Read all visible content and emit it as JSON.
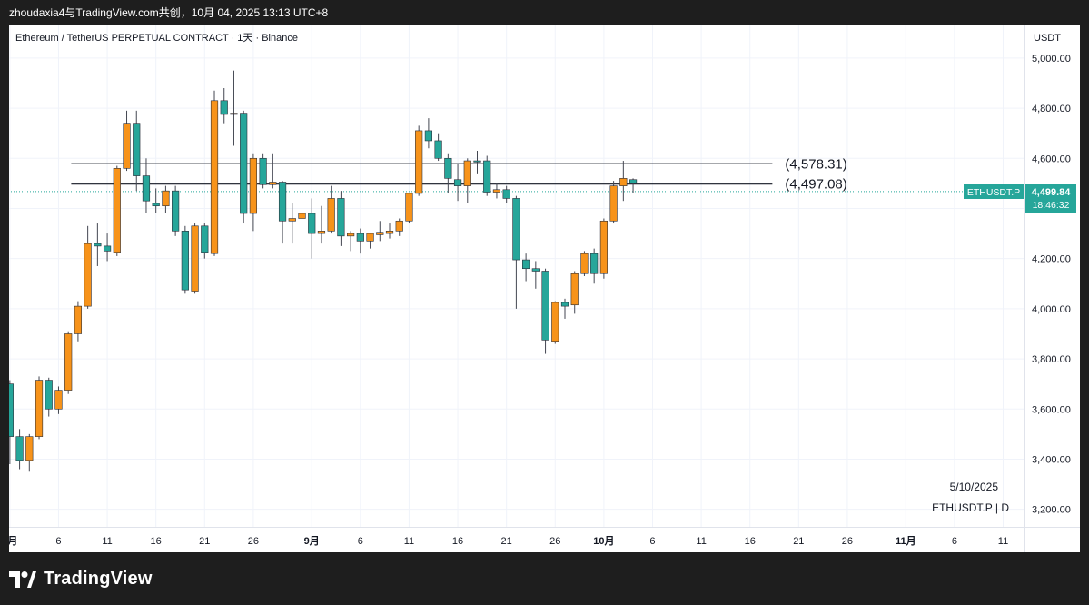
{
  "header": {
    "caption": "zhoudaxia4与TradingView.com共创，10月 04, 2025 13:13 UTC+8"
  },
  "footer": {
    "brand": "TradingView"
  },
  "colors": {
    "up": "#f7931a",
    "down": "#26a69a",
    "wick": "#434651",
    "grid": "#f0f3fa",
    "price_badge": "#26a69a"
  },
  "chart_data": {
    "type": "candlestick",
    "title": "Ethereum / TetherUS PERPETUAL CONTRACT · 1天 · Binance",
    "currency_label": "USDT",
    "y_ticks": [
      "5,000.00",
      "4,800.00",
      "4,600.00",
      "4,400.00",
      "4,200.00",
      "4,000.00",
      "3,800.00",
      "3,600.00",
      "3,400.00",
      "3,200.00"
    ],
    "y_tick_values": [
      5000,
      4800,
      4600,
      4400,
      4200,
      4000,
      3800,
      3600,
      3400,
      3200
    ],
    "x_ticks": [
      "8月",
      "6",
      "11",
      "16",
      "21",
      "26",
      "9月",
      "6",
      "11",
      "16",
      "21",
      "26",
      "10月",
      "6",
      "11",
      "16",
      "21",
      "26",
      "11月",
      "6",
      "11"
    ],
    "x_tick_days": [
      0,
      5,
      10,
      15,
      20,
      25,
      31,
      36,
      41,
      46,
      51,
      56,
      61,
      66,
      71,
      76,
      81,
      86,
      92,
      97,
      102
    ],
    "ylim": [
      3130,
      5130
    ],
    "xlim": [
      -0.08,
      104.1
    ],
    "last_price": {
      "value": "4,499.84",
      "symbol": "ETHUSDT.P",
      "countdown": "18:46:32"
    },
    "horizontal_lines": [
      {
        "value": 4578.31,
        "label": "(4,578.31)"
      },
      {
        "value": 4497.08,
        "label": "(4,497.08)"
      }
    ],
    "watermark": {
      "date": "5/10/2025",
      "symbol": "ETHUSDT.P | D"
    },
    "candles": [
      {
        "d": -1,
        "o": 3800,
        "h": 3820,
        "l": 3630,
        "c": 3690
      },
      {
        "d": 0,
        "o": 3700,
        "h": 3715,
        "l": 3380,
        "c": 3490
      },
      {
        "d": 1,
        "o": 3490,
        "h": 3520,
        "l": 3360,
        "c": 3395
      },
      {
        "d": 2,
        "o": 3395,
        "h": 3500,
        "l": 3350,
        "c": 3490
      },
      {
        "d": 3,
        "o": 3490,
        "h": 3730,
        "l": 3480,
        "c": 3715
      },
      {
        "d": 4,
        "o": 3715,
        "h": 3725,
        "l": 3570,
        "c": 3600
      },
      {
        "d": 5,
        "o": 3600,
        "h": 3690,
        "l": 3580,
        "c": 3675
      },
      {
        "d": 6,
        "o": 3675,
        "h": 3910,
        "l": 3660,
        "c": 3900
      },
      {
        "d": 7,
        "o": 3900,
        "h": 4030,
        "l": 3870,
        "c": 4010
      },
      {
        "d": 8,
        "o": 4010,
        "h": 4330,
        "l": 4000,
        "c": 4260
      },
      {
        "d": 9,
        "o": 4260,
        "h": 4340,
        "l": 4170,
        "c": 4250
      },
      {
        "d": 10,
        "o": 4250,
        "h": 4300,
        "l": 4190,
        "c": 4230
      },
      {
        "d": 11,
        "o": 4225,
        "h": 4570,
        "l": 4210,
        "c": 4560
      },
      {
        "d": 12,
        "o": 4560,
        "h": 4790,
        "l": 4550,
        "c": 4740
      },
      {
        "d": 13,
        "o": 4740,
        "h": 4790,
        "l": 4470,
        "c": 4530
      },
      {
        "d": 14,
        "o": 4530,
        "h": 4600,
        "l": 4380,
        "c": 4430
      },
      {
        "d": 15,
        "o": 4420,
        "h": 4480,
        "l": 4380,
        "c": 4410
      },
      {
        "d": 16,
        "o": 4410,
        "h": 4490,
        "l": 4380,
        "c": 4470
      },
      {
        "d": 17,
        "o": 4470,
        "h": 4490,
        "l": 4290,
        "c": 4310
      },
      {
        "d": 18,
        "o": 4310,
        "h": 4330,
        "l": 4060,
        "c": 4075
      },
      {
        "d": 19,
        "o": 4070,
        "h": 4340,
        "l": 4060,
        "c": 4330
      },
      {
        "d": 20,
        "o": 4330,
        "h": 4340,
        "l": 4200,
        "c": 4225
      },
      {
        "d": 21,
        "o": 4220,
        "h": 4870,
        "l": 4210,
        "c": 4830
      },
      {
        "d": 22,
        "o": 4830,
        "h": 4880,
        "l": 4740,
        "c": 4775
      },
      {
        "d": 23,
        "o": 4775,
        "h": 4950,
        "l": 4650,
        "c": 4780
      },
      {
        "d": 24,
        "o": 4780,
        "h": 4790,
        "l": 4340,
        "c": 4380
      },
      {
        "d": 25,
        "o": 4380,
        "h": 4620,
        "l": 4310,
        "c": 4600
      },
      {
        "d": 26,
        "o": 4600,
        "h": 4620,
        "l": 4480,
        "c": 4495
      },
      {
        "d": 27,
        "o": 4495,
        "h": 4620,
        "l": 4480,
        "c": 4505
      },
      {
        "d": 28,
        "o": 4505,
        "h": 4510,
        "l": 4260,
        "c": 4350
      },
      {
        "d": 29,
        "o": 4350,
        "h": 4420,
        "l": 4260,
        "c": 4360
      },
      {
        "d": 30,
        "o": 4360,
        "h": 4400,
        "l": 4300,
        "c": 4380
      },
      {
        "d": 31,
        "o": 4380,
        "h": 4440,
        "l": 4200,
        "c": 4300
      },
      {
        "d": 32,
        "o": 4300,
        "h": 4410,
        "l": 4260,
        "c": 4310
      },
      {
        "d": 33,
        "o": 4310,
        "h": 4490,
        "l": 4300,
        "c": 4440
      },
      {
        "d": 34,
        "o": 4440,
        "h": 4470,
        "l": 4250,
        "c": 4290
      },
      {
        "d": 35,
        "o": 4290,
        "h": 4310,
        "l": 4230,
        "c": 4300
      },
      {
        "d": 36,
        "o": 4300,
        "h": 4320,
        "l": 4220,
        "c": 4270
      },
      {
        "d": 37,
        "o": 4270,
        "h": 4300,
        "l": 4240,
        "c": 4300
      },
      {
        "d": 38,
        "o": 4295,
        "h": 4350,
        "l": 4270,
        "c": 4305
      },
      {
        "d": 39,
        "o": 4300,
        "h": 4340,
        "l": 4280,
        "c": 4310
      },
      {
        "d": 40,
        "o": 4310,
        "h": 4360,
        "l": 4290,
        "c": 4350
      },
      {
        "d": 41,
        "o": 4350,
        "h": 4460,
        "l": 4340,
        "c": 4460
      },
      {
        "d": 42,
        "o": 4460,
        "h": 4730,
        "l": 4450,
        "c": 4710
      },
      {
        "d": 43,
        "o": 4710,
        "h": 4760,
        "l": 4640,
        "c": 4670
      },
      {
        "d": 44,
        "o": 4670,
        "h": 4700,
        "l": 4590,
        "c": 4600
      },
      {
        "d": 45,
        "o": 4600,
        "h": 4620,
        "l": 4460,
        "c": 4520
      },
      {
        "d": 46,
        "o": 4515,
        "h": 4580,
        "l": 4430,
        "c": 4490
      },
      {
        "d": 47,
        "o": 4490,
        "h": 4600,
        "l": 4420,
        "c": 4590
      },
      {
        "d": 48,
        "o": 4590,
        "h": 4630,
        "l": 4540,
        "c": 4585
      },
      {
        "d": 49,
        "o": 4590,
        "h": 4610,
        "l": 4450,
        "c": 4465
      },
      {
        "d": 50,
        "o": 4465,
        "h": 4500,
        "l": 4440,
        "c": 4475
      },
      {
        "d": 51,
        "o": 4475,
        "h": 4490,
        "l": 4420,
        "c": 4440
      },
      {
        "d": 52,
        "o": 4440,
        "h": 4450,
        "l": 4000,
        "c": 4195
      },
      {
        "d": 53,
        "o": 4195,
        "h": 4220,
        "l": 4110,
        "c": 4160
      },
      {
        "d": 54,
        "o": 4160,
        "h": 4190,
        "l": 4080,
        "c": 4150
      },
      {
        "d": 55,
        "o": 4150,
        "h": 4160,
        "l": 3820,
        "c": 3875
      },
      {
        "d": 56,
        "o": 3870,
        "h": 4030,
        "l": 3860,
        "c": 4025
      },
      {
        "d": 57,
        "o": 4025,
        "h": 4040,
        "l": 3960,
        "c": 4010
      },
      {
        "d": 58,
        "o": 4015,
        "h": 4150,
        "l": 3980,
        "c": 4140
      },
      {
        "d": 59,
        "o": 4140,
        "h": 4230,
        "l": 4130,
        "c": 4220
      },
      {
        "d": 60,
        "o": 4220,
        "h": 4240,
        "l": 4100,
        "c": 4140
      },
      {
        "d": 61,
        "o": 4140,
        "h": 4360,
        "l": 4120,
        "c": 4350
      },
      {
        "d": 62,
        "o": 4350,
        "h": 4510,
        "l": 4340,
        "c": 4490
      },
      {
        "d": 63,
        "o": 4490,
        "h": 4590,
        "l": 4430,
        "c": 4520
      },
      {
        "d": 64,
        "o": 4515,
        "h": 4520,
        "l": 4460,
        "c": 4500
      }
    ]
  }
}
